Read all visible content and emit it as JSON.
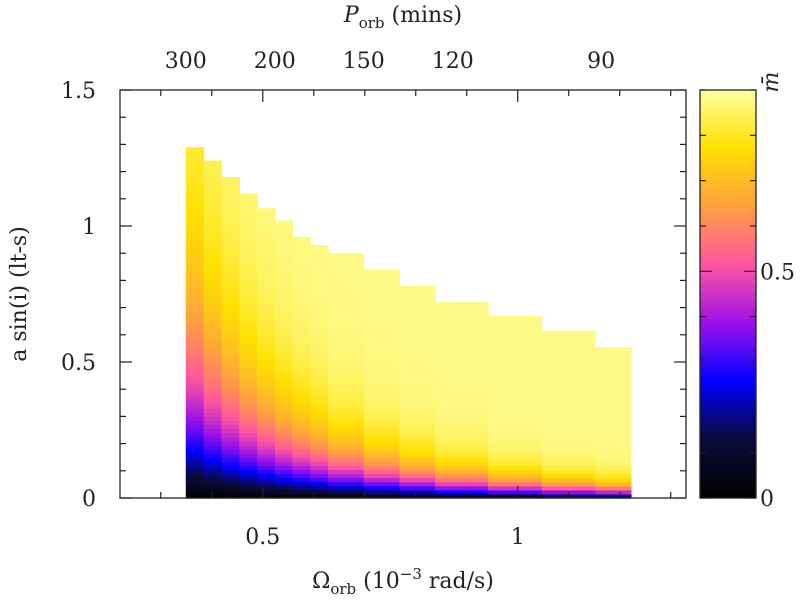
{
  "chart_data": {
    "type": "heatmap",
    "title": "",
    "xlabel": {
      "main": "Ω",
      "sub": "orb",
      "rest": " (10",
      "sup": "−3",
      "tail": " rad/s)"
    },
    "ylabel": "a sin(i) (lt-s)",
    "x2label": {
      "main": "P",
      "sub": "orb",
      "rest": " (mins)"
    },
    "colorbar_label": "m̄",
    "xlim": [
      0.22,
      1.33
    ],
    "ylim": [
      0,
      1.5
    ],
    "xticks": [
      {
        "value": 0.5,
        "label": "0.5"
      },
      {
        "value": 1.0,
        "label": "1"
      }
    ],
    "yticks": [
      {
        "value": 0,
        "label": "0"
      },
      {
        "value": 0.5,
        "label": "0.5"
      },
      {
        "value": 1.0,
        "label": "1"
      },
      {
        "value": 1.5,
        "label": "1.5"
      }
    ],
    "x2ticks": [
      {
        "minutes": 300,
        "label": "300"
      },
      {
        "minutes": 200,
        "label": "200"
      },
      {
        "minutes": 150,
        "label": "150"
      },
      {
        "minutes": 120,
        "label": "120"
      },
      {
        "minutes": 90,
        "label": "90"
      }
    ],
    "colorbar": {
      "range": [
        0,
        0.9
      ],
      "ticks": [
        {
          "value": 0,
          "label": "0"
        },
        {
          "value": 0.5,
          "label": "0.5"
        }
      ],
      "palette": [
        "#000000",
        "#0a0a3a",
        "#0000ff",
        "#9b10ea",
        "#ff55a0",
        "#ffa040",
        "#ffe000",
        "#ffffa0"
      ]
    },
    "columns": [
      {
        "omega_start": 0.349,
        "omega_end": 0.384,
        "y_max": 1.29
      },
      {
        "omega_start": 0.384,
        "omega_end": 0.419,
        "y_max": 1.24
      },
      {
        "omega_start": 0.419,
        "omega_end": 0.454,
        "y_max": 1.18
      },
      {
        "omega_start": 0.454,
        "omega_end": 0.489,
        "y_max": 1.12
      },
      {
        "omega_start": 0.489,
        "omega_end": 0.524,
        "y_max": 1.07
      },
      {
        "omega_start": 0.524,
        "omega_end": 0.558,
        "y_max": 1.02
      },
      {
        "omega_start": 0.558,
        "omega_end": 0.593,
        "y_max": 0.96
      },
      {
        "omega_start": 0.593,
        "omega_end": 0.628,
        "y_max": 0.93
      },
      {
        "omega_start": 0.628,
        "omega_end": 0.698,
        "y_max": 0.9
      },
      {
        "omega_start": 0.698,
        "omega_end": 0.768,
        "y_max": 0.84
      },
      {
        "omega_start": 0.768,
        "omega_end": 0.838,
        "y_max": 0.78
      },
      {
        "omega_start": 0.838,
        "omega_end": 0.942,
        "y_max": 0.72
      },
      {
        "omega_start": 0.942,
        "omega_end": 1.047,
        "y_max": 0.67
      },
      {
        "omega_start": 1.047,
        "omega_end": 1.152,
        "y_max": 0.62
      },
      {
        "omega_start": 1.152,
        "omega_end": 1.222,
        "y_max": 0.56
      }
    ]
  }
}
